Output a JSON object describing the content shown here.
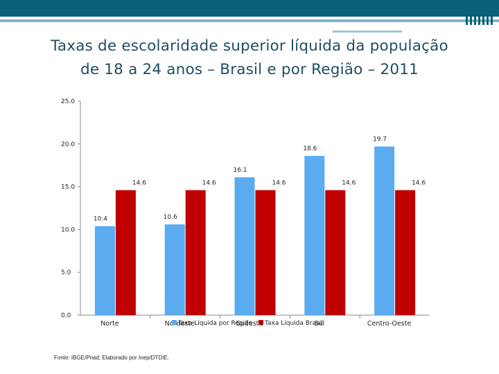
{
  "slide": {
    "title_line1": "Taxas de escolaridade superior líquida da população",
    "title_line2": "de 18 a 24 anos – Brasil e por Região – 2011",
    "source": "Fonte: IBGE/Pnad; Elaborado por Inep/DTDIE."
  },
  "colors": {
    "band": "#0b6079",
    "series_region": "#5aabf0",
    "series_brasil": "#c00000"
  },
  "chart_data": {
    "type": "bar",
    "title": "Taxas de escolaridade superior líquida da população de 18 a 24 anos – Brasil e por Região – 2011",
    "categories": [
      "Norte",
      "Nordeste",
      "Sudeste",
      "Sul",
      "Centro-Oeste"
    ],
    "series": [
      {
        "name": "Taxa Líquida por Região",
        "values": [
          10.4,
          10.6,
          16.1,
          18.6,
          19.7
        ],
        "color": "#5aabf0"
      },
      {
        "name": "Taxa Líquida Brasil",
        "values": [
          14.6,
          14.6,
          14.6,
          14.6,
          14.6
        ],
        "color": "#c00000"
      }
    ],
    "ylim": [
      0,
      25
    ],
    "yticks": [
      "0.0",
      "5.0",
      "10.0",
      "15.0",
      "20.0",
      "25.0"
    ],
    "xlabel": "",
    "ylabel": "",
    "grid": false,
    "legend": "bottom"
  }
}
